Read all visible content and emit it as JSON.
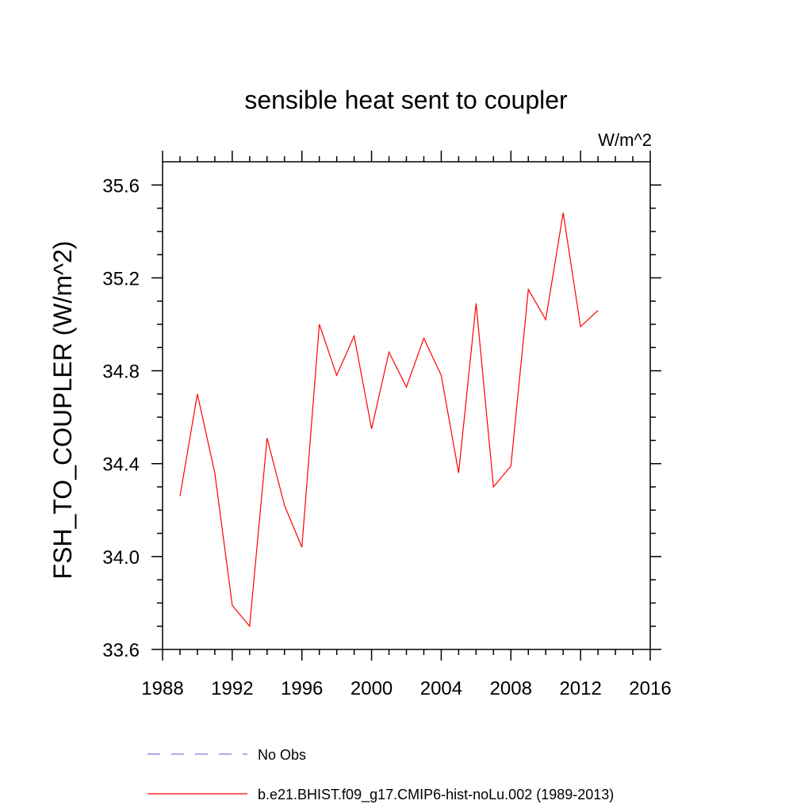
{
  "chart_data": {
    "type": "line",
    "title": "sensible heat sent to coupler",
    "units_label": "W/m^2",
    "ylabel": "FSH_TO_COUPLER  (W/m^2)",
    "xlabel": "",
    "xlim": [
      1988,
      2016
    ],
    "ylim": [
      33.6,
      35.7
    ],
    "x_ticks": [
      1988,
      1992,
      1996,
      2000,
      2004,
      2008,
      2012,
      2016
    ],
    "x_tick_labels": [
      "1988",
      "1992",
      "1996",
      "2000",
      "2004",
      "2008",
      "2012",
      "2016"
    ],
    "y_ticks": [
      33.6,
      34.0,
      34.4,
      34.8,
      35.2,
      35.6
    ],
    "y_tick_labels": [
      "33.6",
      "34.0",
      "34.4",
      "34.8",
      "35.2",
      "35.6"
    ],
    "grid": false,
    "legend_placement": "bottom",
    "series": [
      {
        "name": "b.e21.BHIST.f09_g17.CMIP6-hist-noLu.002 (1989-2013)",
        "color": "#ff0000",
        "style": "solid",
        "x": [
          1989,
          1990,
          1991,
          1992,
          1993,
          1994,
          1995,
          1996,
          1997,
          1998,
          1999,
          2000,
          2001,
          2002,
          2003,
          2004,
          2005,
          2006,
          2007,
          2008,
          2009,
          2010,
          2011,
          2012,
          2013
        ],
        "y": [
          34.26,
          34.7,
          34.36,
          33.79,
          33.7,
          34.51,
          34.22,
          34.04,
          35.0,
          34.78,
          34.95,
          34.55,
          34.88,
          34.73,
          34.94,
          34.78,
          34.36,
          35.09,
          34.3,
          34.39,
          35.15,
          35.02,
          35.48,
          34.99,
          35.06
        ]
      }
    ],
    "legend": [
      {
        "label": "No Obs",
        "color": "#7b7bd6",
        "style": "dashed"
      },
      {
        "label": "b.e21.BHIST.f09_g17.CMIP6-hist-noLu.002 (1989-2013)",
        "color": "#ff0000",
        "style": "solid"
      }
    ]
  }
}
